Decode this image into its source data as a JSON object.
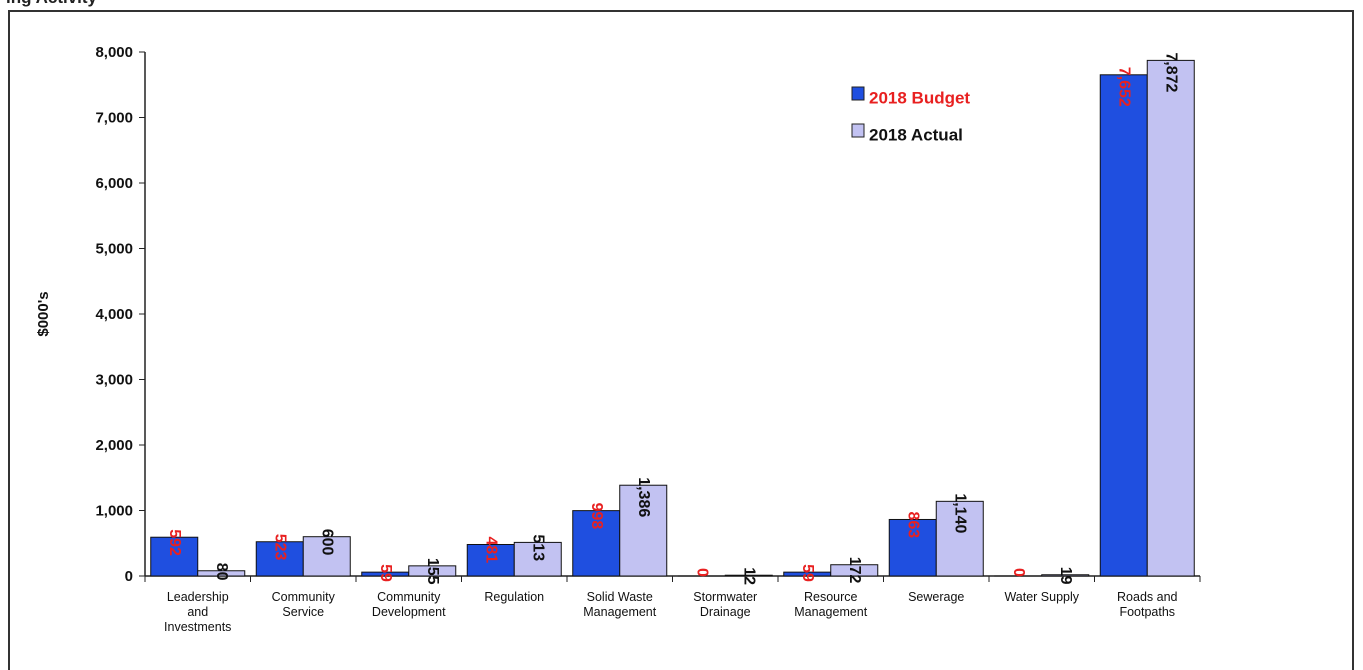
{
  "page": {
    "title": "ing Activity"
  },
  "chart_data": {
    "type": "bar",
    "title": "",
    "xlabel": "",
    "ylabel": "$000's",
    "ylim": [
      0,
      8000
    ],
    "yticks": [
      0,
      1000,
      2000,
      3000,
      4000,
      5000,
      6000,
      7000,
      8000
    ],
    "ytick_labels": [
      "0",
      "1,000",
      "2,000",
      "3,000",
      "4,000",
      "5,000",
      "6,000",
      "7,000",
      "8,000"
    ],
    "grid": false,
    "legend_position": "top-right",
    "categories": [
      [
        "Leadership",
        "and",
        "Investments"
      ],
      [
        "Community",
        "Service"
      ],
      [
        "Community",
        "Development"
      ],
      [
        "Regulation"
      ],
      [
        "Solid Waste",
        "Management"
      ],
      [
        "Stormwater",
        "Drainage"
      ],
      [
        "Resource",
        "Management"
      ],
      [
        "Sewerage"
      ],
      [
        "Water Supply"
      ],
      [
        "Roads and",
        "Footpaths"
      ]
    ],
    "series": [
      {
        "name": "2018 Budget",
        "color": "#1f4fe0",
        "label_color": "#e82020",
        "values": [
          592,
          523,
          59,
          481,
          998,
          0,
          59,
          863,
          0,
          7652
        ],
        "labels": [
          "592",
          "523",
          "59",
          "481",
          "998",
          "0",
          "59",
          "863",
          "0",
          "7,652"
        ]
      },
      {
        "name": "2018 Actual",
        "color": "#c2c2f2",
        "label_color": "#111111",
        "values": [
          80,
          600,
          155,
          513,
          1386,
          12,
          172,
          1140,
          19,
          7872
        ],
        "labels": [
          "80",
          "600",
          "155",
          "513",
          "1,386",
          "12",
          "172",
          "1,140",
          "19",
          "7,872"
        ]
      }
    ]
  }
}
